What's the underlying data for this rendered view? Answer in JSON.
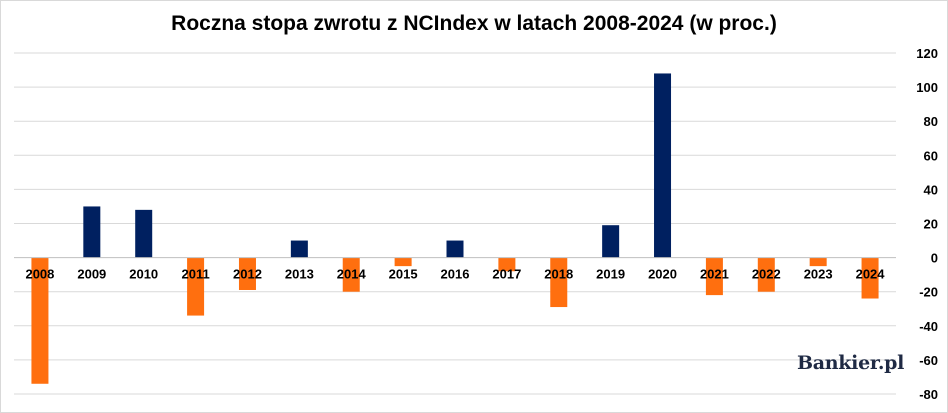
{
  "chart_data": {
    "type": "bar",
    "title": "Roczna stopa zwrotu z NCIndex w latach 2008-2024 (w proc.)",
    "categories": [
      "2008",
      "2009",
      "2010",
      "2011",
      "2012",
      "2013",
      "2014",
      "2015",
      "2016",
      "2017",
      "2018",
      "2019",
      "2020",
      "2021",
      "2022",
      "2023",
      "2024"
    ],
    "values": [
      -74,
      30,
      28,
      -34,
      -19,
      10,
      -20,
      -5,
      10,
      -8,
      -29,
      19,
      108,
      -22,
      -20,
      -5,
      -24
    ],
    "xlabel": "",
    "ylabel": "",
    "ylim": [
      -80,
      120
    ],
    "yticks": [
      -80,
      -60,
      -40,
      -20,
      0,
      20,
      40,
      60,
      80,
      100,
      120
    ],
    "y_axis_side": "right",
    "grid": true,
    "colors": {
      "positive": "#002060",
      "negative": "#ff6f0f",
      "grid": "#d9d9d9",
      "axis": "#bfbfbf"
    }
  },
  "watermark": {
    "text": "Bankier.pl"
  }
}
